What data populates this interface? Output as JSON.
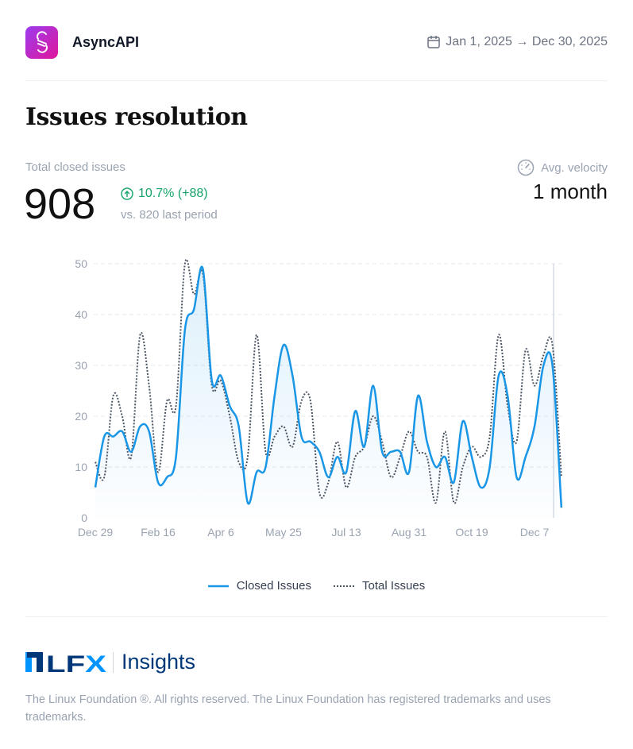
{
  "header": {
    "project": "AsyncAPI",
    "date_range": "Jan 1, 2025 → Dec 30, 2025",
    "calendar_icon": "calendar-icon"
  },
  "title": "Issues resolution",
  "stats": {
    "label": "Total closed issues",
    "value": "908",
    "delta": "10.7% (+88)",
    "comparison": "vs. 820 last period",
    "delta_color": "#16a36a",
    "velocity_label": "Avg. velocity",
    "velocity_value": "1 month"
  },
  "chart_data": {
    "type": "line",
    "x_tick_labels": [
      "Dec 29",
      "Feb 16",
      "Apr 6",
      "May 25",
      "Jul 13",
      "Aug 31",
      "Oct 19",
      "Dec 7"
    ],
    "y_tick_labels": [
      "0",
      "10",
      "20",
      "30",
      "40",
      "50"
    ],
    "ylim": [
      0,
      50
    ],
    "grid": true,
    "legend_placement": "bottom",
    "x_interval": "weekly",
    "series": [
      {
        "name": "Closed Issues",
        "style": "solid",
        "color": "#1a96e6",
        "fill": true,
        "values": [
          6,
          16,
          16,
          17,
          13,
          18,
          17,
          7,
          8,
          12,
          37,
          41,
          49,
          27,
          28,
          22,
          18,
          3,
          9,
          10,
          24,
          34,
          28,
          16,
          15,
          13,
          8,
          12,
          9,
          21,
          14,
          26,
          13,
          13,
          13,
          9,
          24,
          15,
          10,
          12,
          7,
          19,
          12,
          6,
          10,
          28,
          24,
          8,
          12,
          18,
          30,
          30,
          2
        ]
      },
      {
        "name": "Total Issues",
        "style": "dotted",
        "color": "#4b5563",
        "values": [
          11,
          8,
          24,
          20,
          12,
          36,
          26,
          9,
          23,
          22,
          50,
          44,
          48,
          26,
          27,
          20,
          11,
          12,
          36,
          13,
          16,
          18,
          14,
          23,
          23,
          5,
          7,
          15,
          6,
          12,
          14,
          20,
          15,
          8,
          12,
          17,
          13,
          12,
          3,
          17,
          3,
          10,
          14,
          12,
          16,
          36,
          22,
          15,
          33,
          26,
          32,
          34,
          8
        ]
      }
    ]
  },
  "footer": {
    "brand": "LFX",
    "product": "Insights",
    "copyright": "The Linux Foundation ®. All rights reserved. The Linux Foundation has registered trademarks and uses trademarks."
  }
}
